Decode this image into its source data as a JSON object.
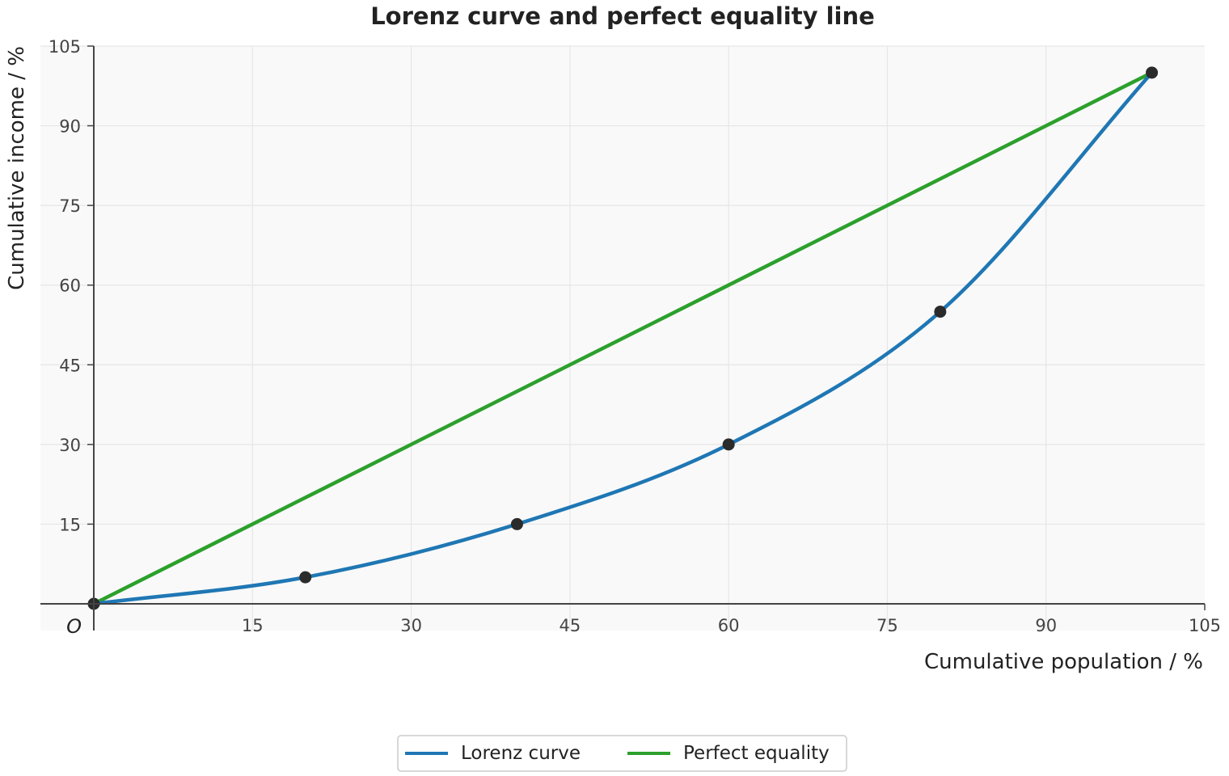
{
  "chart_data": {
    "type": "line",
    "title": "Lorenz curve and perfect equality line",
    "xlabel": "Cumulative population / %",
    "ylabel": "Cumulative income / %",
    "origin_label": "O",
    "xlim": [
      0,
      105
    ],
    "ylim": [
      0,
      105
    ],
    "xticks": [
      15,
      30,
      45,
      60,
      75,
      90,
      105
    ],
    "yticks": [
      15,
      30,
      45,
      60,
      75,
      90,
      105
    ],
    "grid": true,
    "legend_position": "bottom-center",
    "series": [
      {
        "name": "Lorenz curve",
        "color": "#1f77b4",
        "x": [
          0,
          20,
          40,
          60,
          80,
          100
        ],
        "y": [
          0,
          5,
          15,
          30,
          55,
          100
        ],
        "markers": true
      },
      {
        "name": "Perfect equality",
        "color": "#2ca02c",
        "x": [
          0,
          100
        ],
        "y": [
          0,
          100
        ],
        "markers": false
      }
    ],
    "marker_color": "#2b2b2b",
    "plot_background": "#f9f9f9",
    "grid_color": "#e6e6e6",
    "axis_color": "#444444"
  }
}
